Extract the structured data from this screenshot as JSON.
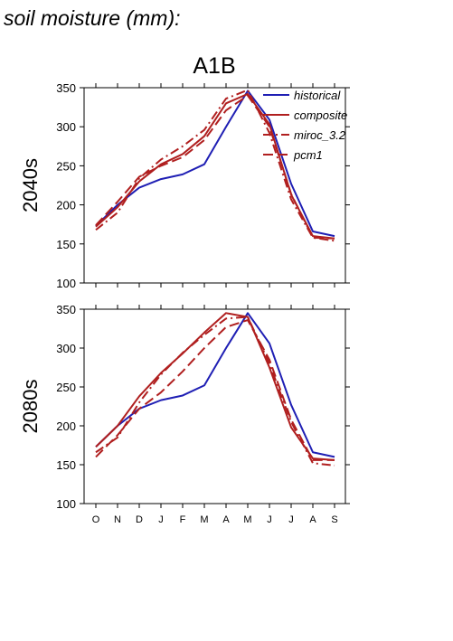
{
  "page_title": "soil moisture (mm):",
  "scenario": "A1B",
  "colors": {
    "historical": "#1f1fb4",
    "composite": "#b01f1f",
    "miroc": "#b01f1f",
    "pcm1": "#b01f1f",
    "axis": "#000000"
  },
  "chart_data": [
    {
      "type": "line",
      "panel_label": "2040s",
      "categories": [
        "O",
        "N",
        "D",
        "J",
        "F",
        "M",
        "A",
        "M",
        "J",
        "J",
        "A",
        "S"
      ],
      "ylim": [
        100,
        350
      ],
      "yticks": [
        100,
        150,
        200,
        250,
        300,
        350
      ],
      "legend_position": "top-right",
      "series": [
        {
          "name": "historical",
          "style": "solid",
          "color": "#1f1fb4",
          "values": [
            173,
            200,
            222,
            233,
            239,
            252,
            300,
            346,
            309,
            227,
            166,
            160
          ]
        },
        {
          "name": "composite",
          "style": "solid",
          "color": "#b01f1f",
          "values": [
            172,
            197,
            230,
            252,
            265,
            288,
            330,
            342,
            303,
            213,
            160,
            157
          ]
        },
        {
          "name": "miroc_3.2",
          "style": "dashdot",
          "color": "#b01f1f",
          "values": [
            168,
            190,
            234,
            258,
            275,
            296,
            336,
            347,
            292,
            207,
            158,
            154
          ]
        },
        {
          "name": "pcm1",
          "style": "dash",
          "color": "#b01f1f",
          "values": [
            174,
            204,
            236,
            250,
            261,
            283,
            321,
            340,
            300,
            214,
            158,
            157
          ]
        }
      ]
    },
    {
      "type": "line",
      "panel_label": "2080s",
      "categories": [
        "O",
        "N",
        "D",
        "J",
        "F",
        "M",
        "A",
        "M",
        "J",
        "J",
        "A",
        "S"
      ],
      "ylim": [
        100,
        350
      ],
      "yticks": [
        100,
        150,
        200,
        250,
        300,
        350
      ],
      "series": [
        {
          "name": "historical",
          "style": "solid",
          "color": "#1f1fb4",
          "values": [
            173,
            200,
            222,
            233,
            239,
            252,
            300,
            345,
            306,
            227,
            166,
            160
          ]
        },
        {
          "name": "composite",
          "style": "solid",
          "color": "#b01f1f",
          "values": [
            173,
            200,
            238,
            268,
            293,
            320,
            345,
            340,
            275,
            198,
            158,
            156
          ]
        },
        {
          "name": "miroc_3.2",
          "style": "dashdot",
          "color": "#b01f1f",
          "values": [
            166,
            185,
            230,
            266,
            294,
            317,
            338,
            340,
            280,
            205,
            152,
            149
          ]
        },
        {
          "name": "pcm1",
          "style": "dash",
          "color": "#b01f1f",
          "values": [
            160,
            188,
            222,
            243,
            270,
            300,
            327,
            336,
            285,
            208,
            156,
            156
          ]
        }
      ]
    }
  ]
}
